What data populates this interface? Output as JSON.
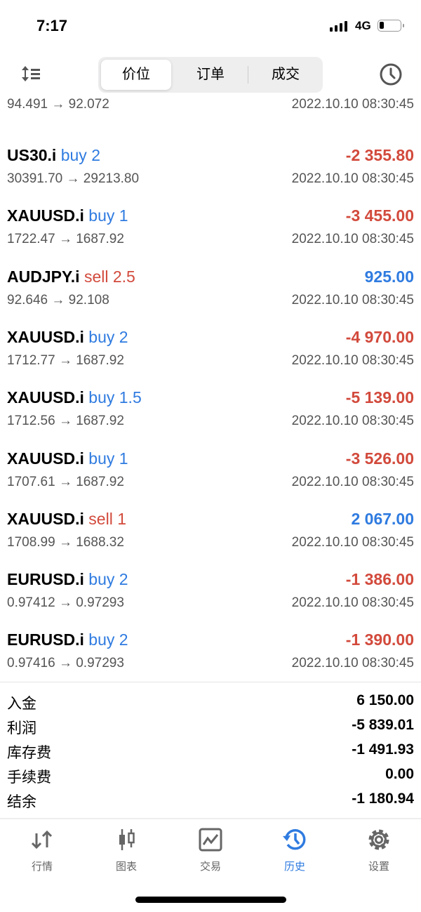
{
  "status_bar": {
    "time": "7:17",
    "network": "4G"
  },
  "header": {
    "tabs": [
      {
        "label": "价位"
      },
      {
        "label": "订单"
      },
      {
        "label": "成交"
      }
    ],
    "active_tab": 0,
    "left_icon": "sort-icon",
    "right_icon": "clock-icon"
  },
  "partial_row": {
    "prices": "94.491 → 92.072",
    "time": "2022.10.10 08:30:45"
  },
  "deals": [
    {
      "symbol": "US30.i",
      "side": "buy",
      "volume": "buy 2",
      "profit": "-2 355.80",
      "prices": "30391.70 → 29213.80",
      "time": "2022.10.10 08:30:45"
    },
    {
      "symbol": "XAUUSD.i",
      "side": "buy",
      "volume": "buy 1",
      "profit": "-3 455.00",
      "prices": "1722.47 → 1687.92",
      "time": "2022.10.10 08:30:45"
    },
    {
      "symbol": "AUDJPY.i",
      "side": "sell",
      "volume": "sell 2.5",
      "profit": "925.00",
      "prices": "92.646 → 92.108",
      "time": "2022.10.10 08:30:45"
    },
    {
      "symbol": "XAUUSD.i",
      "side": "buy",
      "volume": "buy 2",
      "profit": "-4 970.00",
      "prices": "1712.77 → 1687.92",
      "time": "2022.10.10 08:30:45"
    },
    {
      "symbol": "XAUUSD.i",
      "side": "buy",
      "volume": "buy 1.5",
      "profit": "-5 139.00",
      "prices": "1712.56 → 1687.92",
      "time": "2022.10.10 08:30:45"
    },
    {
      "symbol": "XAUUSD.i",
      "side": "buy",
      "volume": "buy 1",
      "profit": "-3 526.00",
      "prices": "1707.61 → 1687.92",
      "time": "2022.10.10 08:30:45"
    },
    {
      "symbol": "XAUUSD.i",
      "side": "sell",
      "volume": "sell 1",
      "profit": "2 067.00",
      "prices": "1708.99 → 1688.32",
      "time": "2022.10.10 08:30:45"
    },
    {
      "symbol": "EURUSD.i",
      "side": "buy",
      "volume": "buy 2",
      "profit": "-1 386.00",
      "prices": "0.97412 → 0.97293",
      "time": "2022.10.10 08:30:45"
    },
    {
      "symbol": "EURUSD.i",
      "side": "buy",
      "volume": "buy 2",
      "profit": "-1 390.00",
      "prices": "0.97416 → 0.97293",
      "time": "2022.10.10 08:30:45"
    }
  ],
  "summary": [
    {
      "label": "入金",
      "value": "6 150.00"
    },
    {
      "label": "利润",
      "value": "-5 839.01"
    },
    {
      "label": "库存费",
      "value": "-1 491.93"
    },
    {
      "label": "手续费",
      "value": "0.00"
    },
    {
      "label": "结余",
      "value": "-1 180.94"
    }
  ],
  "tabbar": [
    {
      "label": "行情",
      "icon": "arrows-updown-icon"
    },
    {
      "label": "图表",
      "icon": "candlestick-icon"
    },
    {
      "label": "交易",
      "icon": "chart-line-icon"
    },
    {
      "label": "历史",
      "icon": "history-icon"
    },
    {
      "label": "设置",
      "icon": "gear-icon"
    }
  ],
  "active_tabbar": 3,
  "colors": {
    "buy": "#2f7be0",
    "sell": "#d24a3c",
    "active": "#2f7be0"
  }
}
